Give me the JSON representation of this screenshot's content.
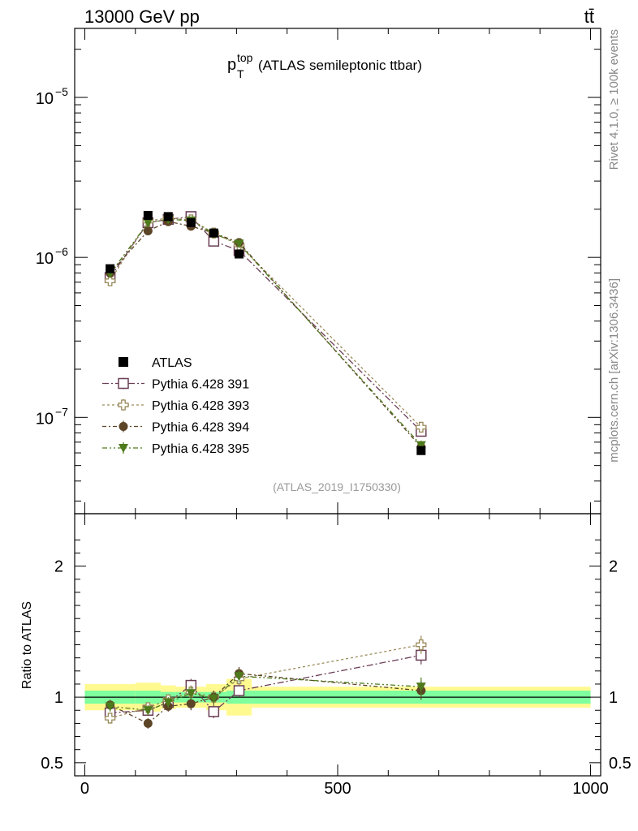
{
  "header": {
    "left": "13000 GeV pp",
    "right": "tt̄"
  },
  "side_labels": {
    "rivet": "Rivet 4.1.0, ≥ 100k events",
    "mcplots": "mcplots.cern.ch [arXiv:1306.3436]"
  },
  "chart_data": {
    "type": "scatter",
    "title": {
      "main": "p",
      "sup": "top",
      "sub": "T",
      "suffix": " (ATLAS semileptonic ttbar)"
    },
    "analysis_id": "(ATLAS_2019_I1750330)",
    "x": [
      50,
      125,
      165,
      210,
      255,
      305,
      665
    ],
    "x_bins": [
      [
        0,
        100
      ],
      [
        100,
        150
      ],
      [
        150,
        180
      ],
      [
        180,
        240
      ],
      [
        240,
        280
      ],
      [
        280,
        330
      ],
      [
        330,
        1000
      ]
    ],
    "xlim": [
      -20,
      1020
    ],
    "x_ticks": [
      0,
      500,
      1000
    ],
    "main_ylim": [
      2.5e-08,
      2.7e-05
    ],
    "main_y_ticks": [
      {
        "value": 1e-05,
        "base": "10",
        "exp": "−5"
      },
      {
        "value": 1e-06,
        "base": "10",
        "exp": "−6"
      },
      {
        "value": 1e-07,
        "base": "10",
        "exp": "−7"
      }
    ],
    "ratio_ylabel": "Ratio to ATLAS",
    "ratio_ylim": [
      0.4,
      2.4
    ],
    "ratio_y_ticks": [
      {
        "value": 0.5,
        "label": "0.5"
      },
      {
        "value": 1,
        "label": "1"
      },
      {
        "value": 2,
        "label": "2"
      }
    ],
    "data_series": {
      "name": "ATLAS",
      "color": "#000000",
      "values": [
        8.5e-07,
        1.83e-06,
        1.8e-06,
        1.65e-06,
        1.42e-06,
        1.05e-06,
        6.2e-08
      ],
      "band_inner": [
        0.05,
        0.05,
        0.04,
        0.04,
        0.04,
        0.05,
        0.05
      ],
      "band_outer": [
        0.1,
        0.11,
        0.09,
        0.08,
        0.1,
        0.14,
        0.08
      ]
    },
    "series": [
      {
        "name": "Pythia 6.428 391",
        "color": "#6b3e55",
        "marker": "open-square",
        "dash": "8,3,2,3",
        "ratio": [
          0.88,
          0.9,
          0.96,
          1.09,
          0.89,
          1.05,
          1.32
        ],
        "ratio_err": [
          0.04,
          0.04,
          0.04,
          0.05,
          0.05,
          0.05,
          0.07
        ]
      },
      {
        "name": "Pythia 6.428 393",
        "color": "#9a8a5a",
        "marker": "open-plus",
        "dash": "3,3",
        "ratio": [
          0.84,
          0.92,
          0.98,
          1.04,
          1.0,
          1.14,
          1.4
        ],
        "ratio_err": [
          0.04,
          0.04,
          0.04,
          0.05,
          0.05,
          0.05,
          0.07
        ]
      },
      {
        "name": "Pythia 6.428 394",
        "color": "#5c4426",
        "marker": "filled-circle",
        "dash": "5,3,2,3",
        "ratio": [
          0.94,
          0.8,
          0.93,
          0.95,
          1.0,
          1.18,
          1.05
        ],
        "ratio_err": [
          0.04,
          0.04,
          0.04,
          0.05,
          0.05,
          0.05,
          0.07
        ]
      },
      {
        "name": "Pythia 6.428 395",
        "color": "#4e7a1c",
        "marker": "filled-triangle-down",
        "dash": "6,3,2,3,2,3",
        "ratio": [
          0.93,
          0.9,
          0.96,
          1.03,
          0.99,
          1.16,
          1.08
        ],
        "ratio_err": [
          0.04,
          0.04,
          0.04,
          0.05,
          0.05,
          0.05,
          0.07
        ]
      }
    ],
    "band_colors": {
      "inner": "#7fff9e",
      "outer": "#fffa90"
    },
    "legend_position": "lower-left"
  }
}
